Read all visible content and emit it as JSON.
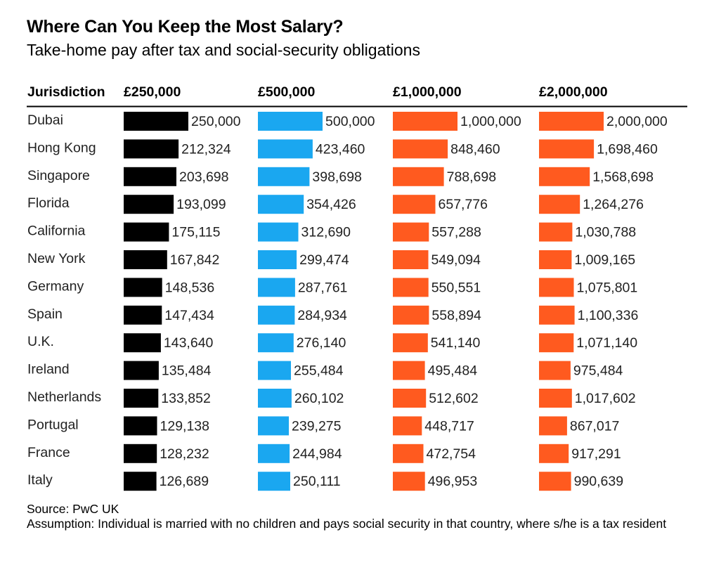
{
  "header": {
    "title": "Where Can You Keep the Most Salary?",
    "subtitle": "Take-home pay after tax and social-security obligations"
  },
  "chart_data": {
    "type": "bar",
    "orientation": "horizontal",
    "title": "Where Can You Keep the Most Salary?",
    "subtitle": "Take-home pay after tax and social-security obligations",
    "category_header": "Jurisdiction",
    "categories": [
      "Dubai",
      "Hong Kong",
      "Singapore",
      "Florida",
      "California",
      "New York",
      "Germany",
      "Spain",
      "U.K.",
      "Ireland",
      "Netherlands",
      "Portugal",
      "France",
      "Italy"
    ],
    "series": [
      {
        "name": "£250,000",
        "max": 250000,
        "color": "#000000",
        "values": [
          250000,
          212324,
          203698,
          193099,
          175115,
          167842,
          148536,
          147434,
          143640,
          135484,
          133852,
          129138,
          128232,
          126689
        ],
        "labels": [
          "250,000",
          "212,324",
          "203,698",
          "193,099",
          "175,115",
          "167,842",
          "148,536",
          "147,434",
          "143,640",
          "135,484",
          "133,852",
          "129,138",
          "128,232",
          "126,689"
        ]
      },
      {
        "name": "£500,000",
        "max": 500000,
        "color": "#1aa7f0",
        "values": [
          500000,
          423460,
          398698,
          354426,
          312690,
          299474,
          287761,
          284934,
          276140,
          255484,
          260102,
          239275,
          244984,
          250111
        ],
        "labels": [
          "500,000",
          "423,460",
          "398,698",
          "354,426",
          "312,690",
          "299,474",
          "287,761",
          "284,934",
          "276,140",
          "255,484",
          "260,102",
          "239,275",
          "244,984",
          "250,111"
        ]
      },
      {
        "name": "£1,000,000",
        "max": 1000000,
        "color": "#ff5a1f",
        "values": [
          1000000,
          848460,
          788698,
          657776,
          557288,
          549094,
          550551,
          558894,
          541140,
          495484,
          512602,
          448717,
          472754,
          496953
        ],
        "labels": [
          "1,000,000",
          "848,460",
          "788,698",
          "657,776",
          "557,288",
          "549,094",
          "550,551",
          "558,894",
          "541,140",
          "495,484",
          "512,602",
          "448,717",
          "472,754",
          "496,953"
        ]
      },
      {
        "name": "£2,000,000",
        "max": 2000000,
        "color": "#ff5a1f",
        "values": [
          2000000,
          1698460,
          1568698,
          1264276,
          1030788,
          1009165,
          1075801,
          1100336,
          1071140,
          975484,
          1017602,
          867017,
          917291,
          990639
        ],
        "labels": [
          "2,000,000",
          "1,698,460",
          "1,568,698",
          "1,264,276",
          "1,030,788",
          "1,009,165",
          "1,075,801",
          "1,100,336",
          "1,071,140",
          "975,484",
          "1,017,602",
          "867,017",
          "917,291",
          "990,639"
        ]
      }
    ]
  },
  "footer": {
    "source": "Source: PwC UK",
    "assumption": "Assumption: Individual is married with no children and pays social security in that country, where s/he is a tax resident"
  }
}
